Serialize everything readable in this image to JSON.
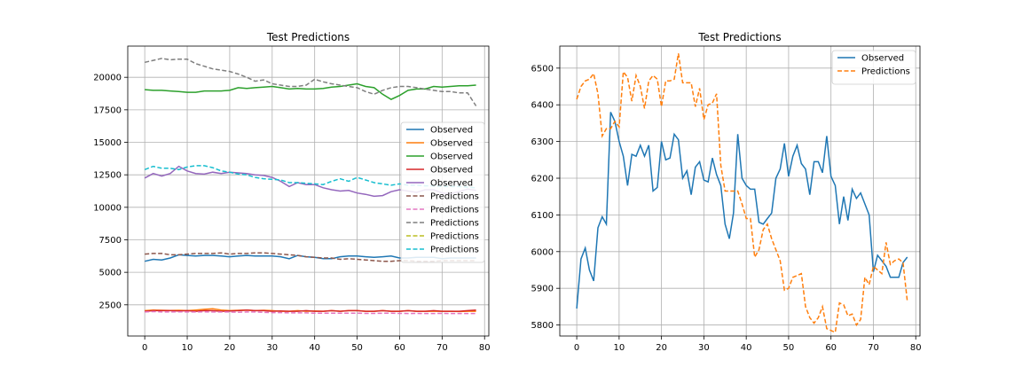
{
  "colors": {
    "blue": "#1f77b4",
    "orange": "#ff7f0e",
    "green": "#2ca02c",
    "red": "#d62728",
    "purple": "#9467bd",
    "brown": "#8c564b",
    "pink": "#e377c2",
    "gray": "#7f7f7f",
    "olive": "#bcbd22",
    "cyan": "#17becf",
    "grid": "#b0b0b0"
  },
  "chart_data": [
    {
      "type": "line",
      "title": "Test Predictions",
      "xlabel": "",
      "ylabel": "",
      "xlim": [
        -4,
        81
      ],
      "ylim": [
        100,
        22400
      ],
      "xticks": [
        0,
        10,
        20,
        30,
        40,
        50,
        60,
        70,
        80
      ],
      "yticks": [
        2500,
        5000,
        7500,
        10000,
        12500,
        15000,
        17500,
        20000
      ],
      "grid": true,
      "legend_position": "center-right",
      "series": [
        {
          "name": "Observed",
          "color": "#1f77b4",
          "style": "solid",
          "x_start": 0,
          "step": 2,
          "values": [
            5850,
            6000,
            5950,
            6100,
            6350,
            6300,
            6250,
            6300,
            6300,
            6250,
            6200,
            6250,
            6300,
            6250,
            6250,
            6250,
            6200,
            6050,
            6300,
            6200,
            6150,
            6050,
            6050,
            6200,
            6250,
            6250,
            6200,
            6150,
            6200,
            6250,
            6100,
            6100,
            6150,
            6150,
            6150,
            6050,
            6100,
            6100,
            6100,
            6100
          ]
        },
        {
          "name": "Observed",
          "color": "#ff7f0e",
          "style": "solid",
          "x_start": 0,
          "step": 2,
          "values": [
            2050,
            2100,
            2080,
            2060,
            2080,
            2050,
            2100,
            2150,
            2200,
            2100,
            2050,
            2080,
            2100,
            2050,
            2080,
            2050,
            2000,
            2000,
            2050,
            2000,
            2020,
            2000,
            2050,
            2000,
            2050,
            2050,
            2000,
            2000,
            2050,
            2000,
            2000,
            2050,
            2000,
            2000,
            2000,
            2000,
            2000,
            1980,
            2000,
            2000
          ]
        },
        {
          "name": "Observed",
          "color": "#2ca02c",
          "style": "solid",
          "x_start": 0,
          "step": 2,
          "values": [
            19050,
            19000,
            19000,
            18950,
            18900,
            18850,
            18850,
            18950,
            18950,
            18950,
            19000,
            19200,
            19150,
            19200,
            19250,
            19300,
            19200,
            19100,
            19150,
            19100,
            19100,
            19150,
            19250,
            19300,
            19400,
            19500,
            19300,
            19200,
            18700,
            18300,
            18600,
            19000,
            19100,
            19100,
            19300,
            19250,
            19300,
            19350,
            19350,
            19400
          ]
        },
        {
          "name": "Observed",
          "color": "#d62728",
          "style": "solid",
          "x_start": 0,
          "step": 2,
          "values": [
            2000,
            2050,
            2050,
            2050,
            2030,
            2050,
            2000,
            2050,
            2050,
            2000,
            2030,
            2050,
            2100,
            2050,
            2050,
            2000,
            2030,
            2000,
            2000,
            2050,
            2000,
            2000,
            2050,
            2000,
            2050,
            2050,
            2000,
            2000,
            2050,
            2000,
            2000,
            2050,
            2000,
            2000,
            2050,
            2000,
            2000,
            2000,
            2050,
            2100
          ]
        },
        {
          "name": "Observed",
          "color": "#9467bd",
          "style": "solid",
          "x_start": 0,
          "step": 2,
          "values": [
            12250,
            12600,
            12400,
            12600,
            13150,
            12800,
            12600,
            12550,
            12700,
            12600,
            12700,
            12650,
            12600,
            12500,
            12450,
            12300,
            12000,
            11600,
            11900,
            11750,
            11750,
            11500,
            11350,
            11250,
            11300,
            11100,
            11000,
            10850,
            10900,
            11200,
            11350,
            11250,
            11150,
            11350,
            11350,
            11100,
            11050,
            11200,
            11400,
            11300
          ]
        },
        {
          "name": "Predictions",
          "color": "#8c564b",
          "style": "dashed",
          "x_start": 0,
          "step": 2,
          "values": [
            6400,
            6450,
            6450,
            6350,
            6350,
            6400,
            6450,
            6450,
            6450,
            6500,
            6400,
            6450,
            6450,
            6500,
            6500,
            6450,
            6400,
            6350,
            6300,
            6200,
            6150,
            6100,
            6100,
            6000,
            6050,
            6000,
            5950,
            5900,
            5850,
            5850,
            5900,
            5900,
            5850,
            5850,
            5850,
            5900,
            5900,
            5900,
            5900,
            5900
          ]
        },
        {
          "name": "Predictions",
          "color": "#e377c2",
          "style": "dashed",
          "x_start": 0,
          "step": 2,
          "values": [
            1950,
            1980,
            1950,
            1950,
            1960,
            1950,
            1950,
            1960,
            1950,
            1950,
            1950,
            1930,
            1950,
            1950,
            1920,
            1900,
            1900,
            1880,
            1880,
            1880,
            1850,
            1850,
            1860,
            1850,
            1850,
            1850,
            1840,
            1840,
            1850,
            1850,
            1840,
            1830,
            1840,
            1830,
            1830,
            1840,
            1830,
            1830,
            1830,
            1830
          ]
        },
        {
          "name": "Predictions",
          "color": "#7f7f7f",
          "style": "dashed",
          "x_start": 0,
          "step": 2,
          "values": [
            21150,
            21300,
            21450,
            21350,
            21400,
            21400,
            21050,
            20850,
            20650,
            20550,
            20450,
            20250,
            20000,
            19700,
            19800,
            19500,
            19400,
            19300,
            19300,
            19400,
            19850,
            19650,
            19500,
            19400,
            19300,
            19200,
            18900,
            18700,
            19000,
            19200,
            19300,
            19300,
            19200,
            19100,
            19000,
            18900,
            18900,
            18800,
            18800,
            17800
          ]
        },
        {
          "name": "Predictions",
          "color": "#bcbd22",
          "style": "dashed",
          "x_start": 0,
          "step": 2,
          "values": []
        },
        {
          "name": "Predictions",
          "color": "#17becf",
          "style": "dashed",
          "x_start": 0,
          "step": 2,
          "values": [
            12900,
            13150,
            13000,
            13000,
            12900,
            13100,
            13200,
            13200,
            13050,
            12800,
            12700,
            12550,
            12500,
            12300,
            12200,
            12150,
            12100,
            11900,
            11900,
            11850,
            11800,
            11750,
            12000,
            12200,
            12000,
            12300,
            12100,
            11900,
            11800,
            11700,
            11800,
            11700,
            11700,
            11650,
            11650,
            11600,
            11600,
            11600,
            11550,
            11500
          ]
        }
      ]
    },
    {
      "type": "line",
      "title": "Test Predictions",
      "xlabel": "",
      "ylabel": "",
      "xlim": [
        -4,
        81
      ],
      "ylim": [
        5770,
        6560
      ],
      "xticks": [
        0,
        10,
        20,
        30,
        40,
        50,
        60,
        70,
        80
      ],
      "yticks": [
        5800,
        5900,
        6000,
        6100,
        6200,
        6300,
        6400,
        6500
      ],
      "grid": true,
      "legend_position": "top-right",
      "series": [
        {
          "name": "Observed",
          "color": "#1f77b4",
          "style": "solid",
          "x_start": 0,
          "step": 1,
          "values": [
            5845,
            5980,
            6010,
            5950,
            5920,
            6065,
            6095,
            6075,
            6380,
            6355,
            6300,
            6260,
            6180,
            6265,
            6260,
            6290,
            6260,
            6290,
            6165,
            6175,
            6300,
            6250,
            6255,
            6320,
            6305,
            6200,
            6220,
            6155,
            6230,
            6245,
            6195,
            6190,
            6255,
            6210,
            6180,
            6075,
            6035,
            6105,
            6320,
            6200,
            6180,
            6170,
            6170,
            6080,
            6075,
            6090,
            6105,
            6200,
            6225,
            6295,
            6205,
            6260,
            6290,
            6240,
            6225,
            6155,
            6245,
            6245,
            6215,
            6315,
            6205,
            6180,
            6075,
            6150,
            6085,
            6170,
            6145,
            6160,
            6130,
            6100,
            5945,
            5990,
            5975,
            5960,
            5930,
            5930,
            5930,
            5970,
            5985
          ]
        },
        {
          "name": "Predictions",
          "color": "#ff7f0e",
          "style": "dashed",
          "x_start": 0,
          "step": 1,
          "values": [
            6415,
            6450,
            6465,
            6470,
            6485,
            6430,
            6315,
            6335,
            6335,
            6355,
            6340,
            6490,
            6475,
            6410,
            6480,
            6450,
            6390,
            6465,
            6480,
            6470,
            6395,
            6465,
            6465,
            6470,
            6540,
            6460,
            6460,
            6460,
            6395,
            6445,
            6360,
            6400,
            6405,
            6430,
            6235,
            6165,
            6165,
            6165,
            6165,
            6130,
            6090,
            6090,
            5985,
            6005,
            6060,
            6075,
            6035,
            6005,
            5975,
            5895,
            5900,
            5930,
            5935,
            5940,
            5850,
            5820,
            5805,
            5820,
            5850,
            5790,
            5785,
            5780,
            5860,
            5855,
            5825,
            5830,
            5800,
            5815,
            5930,
            5910,
            5960,
            5950,
            5940,
            6025,
            5965,
            5975,
            5980,
            5970,
            5865
          ]
        }
      ]
    }
  ]
}
